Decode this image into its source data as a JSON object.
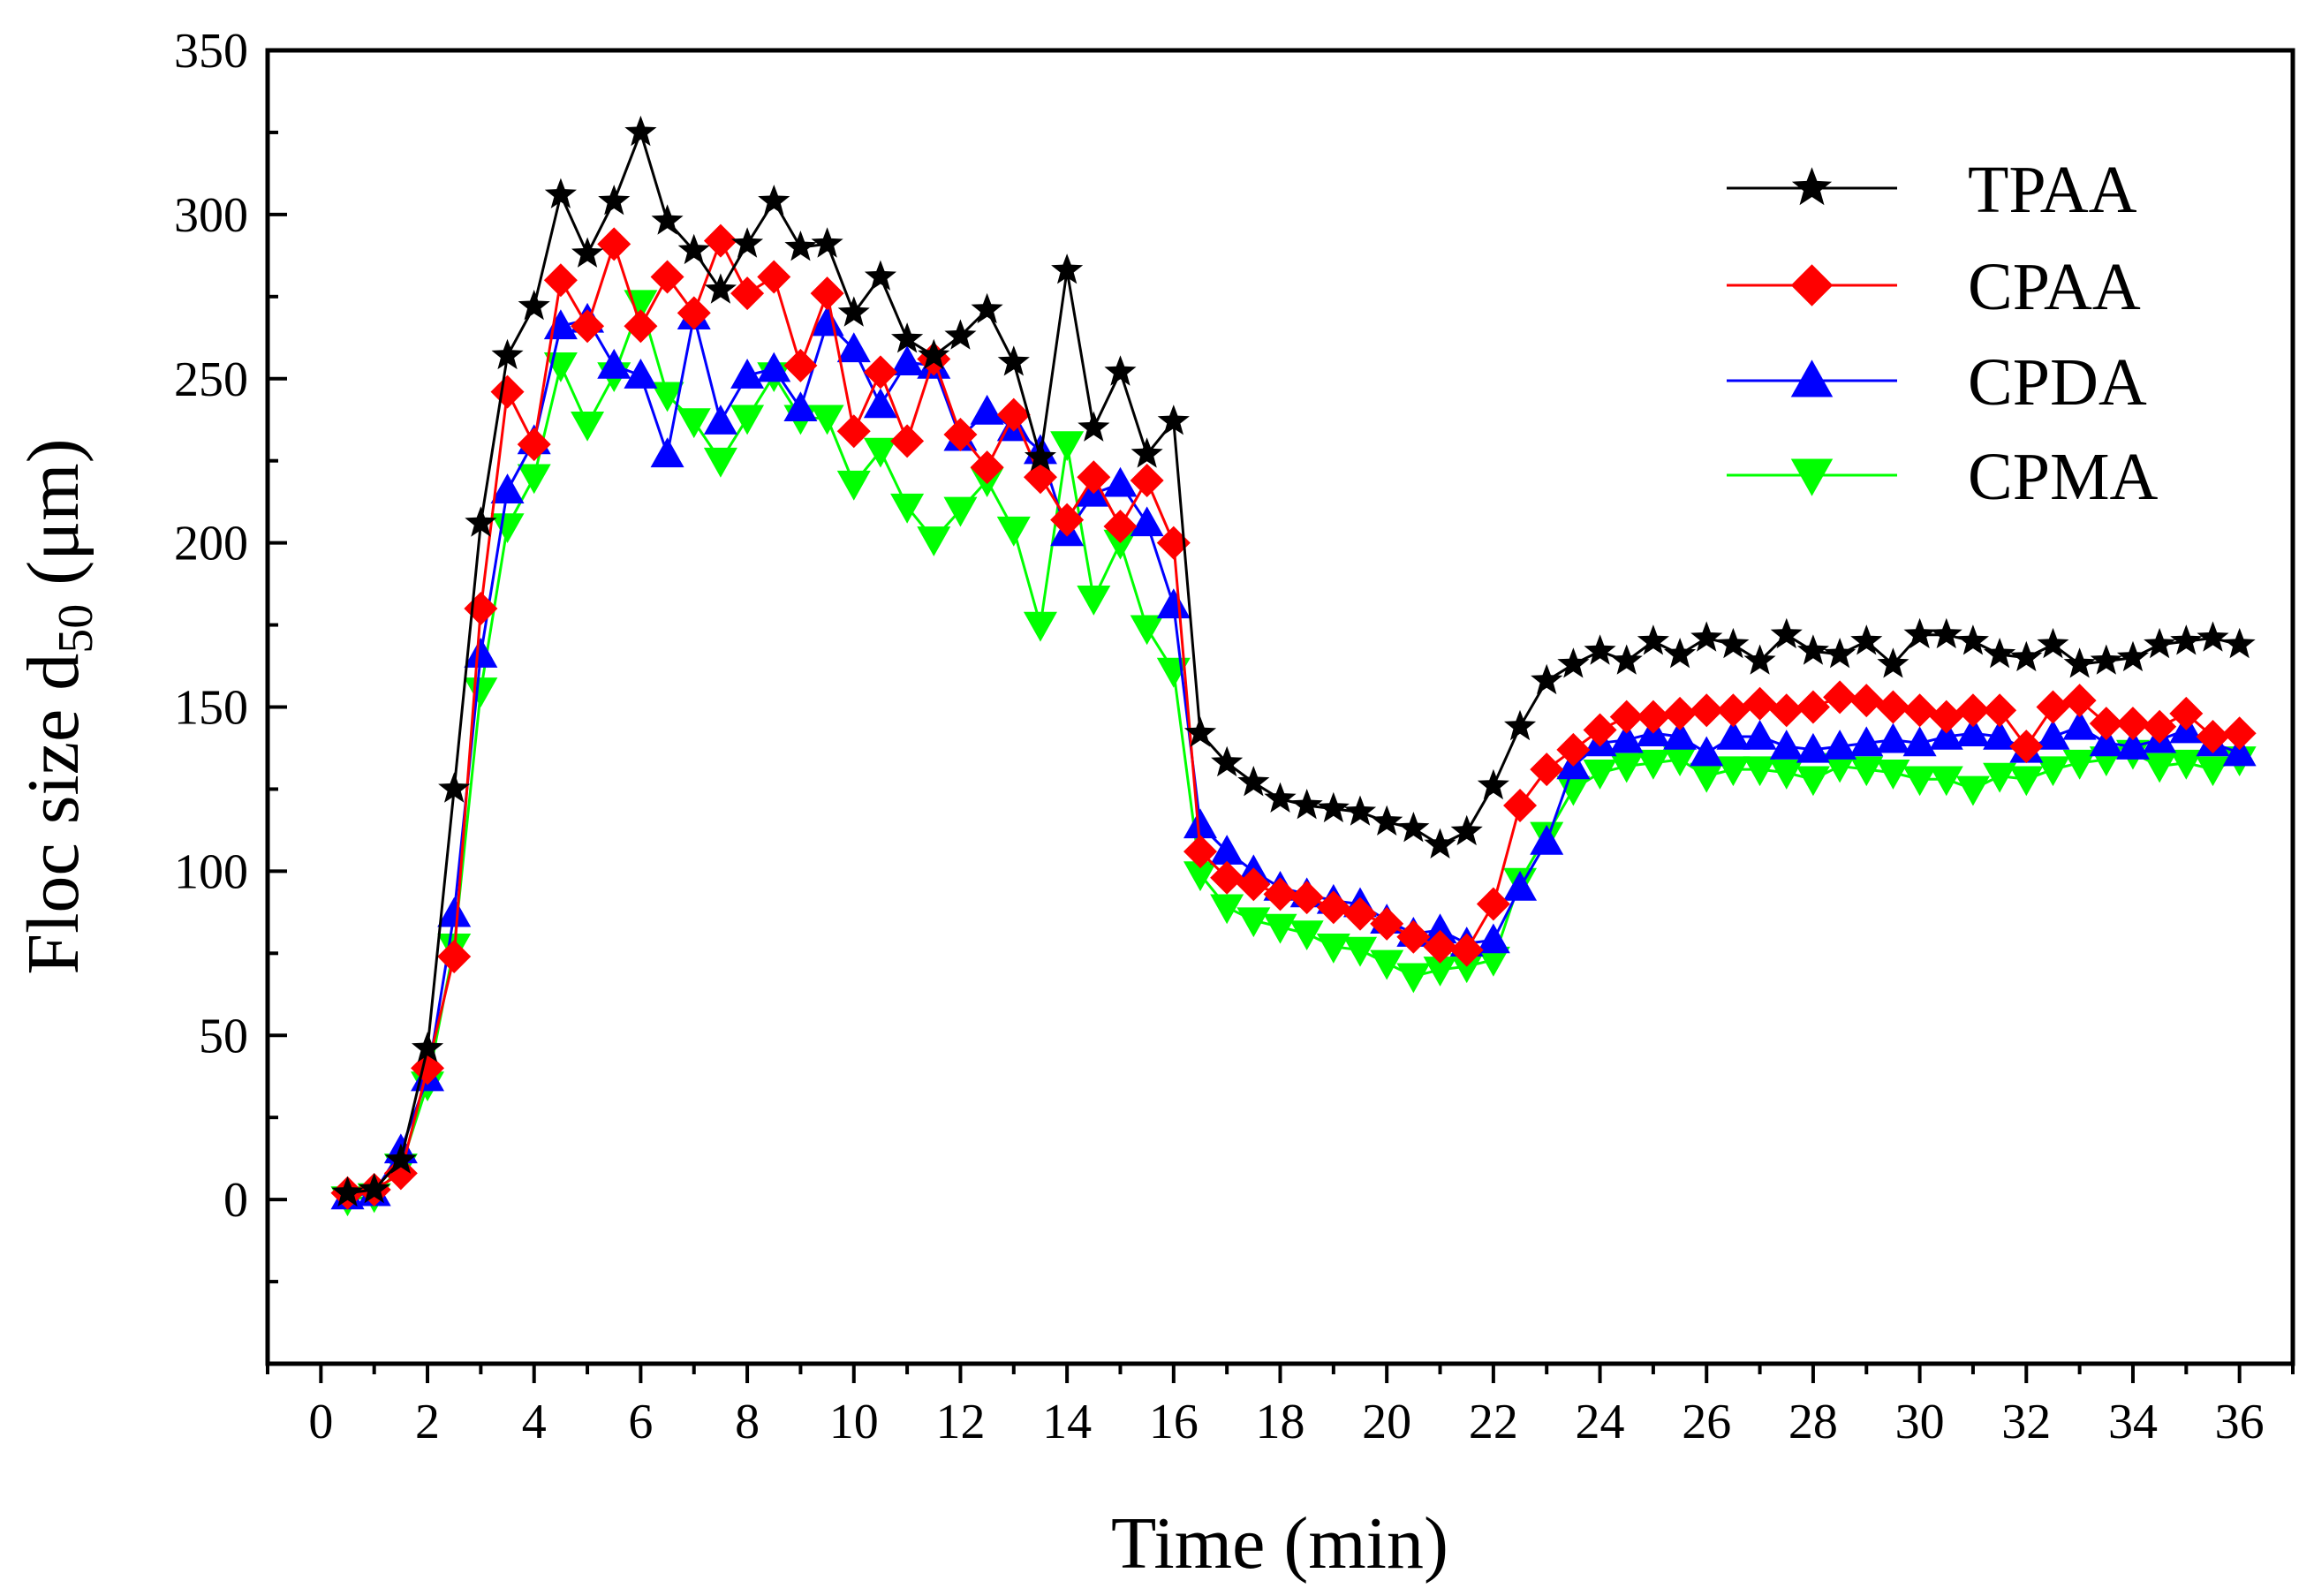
{
  "chart_data": {
    "type": "line",
    "title": "",
    "xlabel": "Time (min)",
    "ylabel_main": "Floc size d",
    "ylabel_sub": "50",
    "ylabel_unit": " (μm)",
    "xlim": [
      -1,
      37
    ],
    "ylim": [
      -50,
      350
    ],
    "xticks": [
      0,
      2,
      4,
      6,
      8,
      10,
      12,
      14,
      16,
      18,
      20,
      22,
      24,
      26,
      28,
      30,
      32,
      34,
      36
    ],
    "yticks": [
      0,
      50,
      100,
      150,
      200,
      250,
      300,
      350
    ],
    "grid": false,
    "legend_position": "top-right",
    "x": [
      0.5,
      1,
      1.5,
      2,
      2.5,
      3,
      3.5,
      4,
      4.5,
      5,
      5.5,
      6,
      6.5,
      7,
      7.5,
      8,
      8.5,
      9,
      9.5,
      10,
      10.5,
      11,
      11.5,
      12,
      12.5,
      13,
      13.5,
      14,
      14.5,
      15,
      15.5,
      16,
      16.5,
      17,
      17.5,
      18,
      18.5,
      19,
      19.5,
      20,
      20.5,
      21,
      21.5,
      22,
      22.5,
      23,
      23.5,
      24,
      24.5,
      25,
      25.5,
      26,
      26.5,
      27,
      27.5,
      28,
      28.5,
      29,
      29.5,
      30,
      30.5,
      31,
      31.5,
      32,
      32.5,
      33,
      33.5,
      34,
      34.5,
      35,
      35.5,
      36
    ],
    "series": [
      {
        "name": "TPAA",
        "color": "#000000",
        "marker": "star",
        "values": [
          2,
          3,
          12,
          46,
          125,
          206,
          257,
          272,
          306,
          288,
          304,
          325,
          298,
          289,
          277,
          291,
          304,
          290,
          291,
          270,
          281,
          262,
          257,
          263,
          271,
          255,
          226,
          283,
          235,
          252,
          227,
          237,
          142,
          133,
          127,
          122,
          120,
          119,
          118,
          115,
          113,
          108,
          112,
          126,
          144,
          158,
          163,
          167,
          164,
          170,
          166,
          171,
          169,
          164,
          172,
          167,
          166,
          170,
          163,
          172,
          172,
          170,
          166,
          165,
          169,
          163,
          164,
          165,
          169,
          170,
          171,
          169
        ]
      },
      {
        "name": "CPAA",
        "color": "#ff0000",
        "marker": "diamond",
        "values": [
          2,
          3,
          8,
          40,
          74,
          180,
          246,
          230,
          280,
          266,
          291,
          266,
          281,
          270,
          292,
          276,
          281,
          254,
          276,
          234,
          252,
          231,
          256,
          233,
          223,
          239,
          220,
          207,
          220,
          205,
          219,
          200,
          106,
          98,
          96,
          93,
          92,
          89,
          87,
          84,
          80,
          77,
          76,
          90,
          120,
          131,
          137,
          143,
          147,
          147,
          148,
          149,
          149,
          151,
          149,
          150,
          153,
          152,
          150,
          149,
          147,
          149,
          149,
          138,
          150,
          152,
          145,
          145,
          144,
          148,
          141,
          142
        ]
      },
      {
        "name": "CPDA",
        "color": "#0000ff",
        "marker": "triangle-up",
        "values": [
          1,
          2,
          15,
          37,
          87,
          166,
          216,
          231,
          266,
          268,
          254,
          251,
          227,
          269,
          237,
          251,
          253,
          241,
          267,
          259,
          242,
          255,
          254,
          232,
          240,
          235,
          228,
          203,
          215,
          218,
          206,
          181,
          114,
          106,
          100,
          95,
          93,
          91,
          90,
          85,
          81,
          82,
          78,
          79,
          95,
          109,
          132,
          139,
          140,
          142,
          141,
          136,
          141,
          141,
          138,
          137,
          138,
          139,
          140,
          139,
          141,
          142,
          141,
          137,
          141,
          144,
          139,
          138,
          140,
          143,
          139,
          136
        ]
      },
      {
        "name": "CPMA",
        "color": "#00ff00",
        "marker": "triangle-down",
        "values": [
          0,
          1,
          10,
          35,
          77,
          155,
          205,
          220,
          254,
          236,
          251,
          273,
          245,
          237,
          225,
          238,
          251,
          238,
          238,
          218,
          228,
          211,
          201,
          210,
          219,
          204,
          175,
          230,
          183,
          200,
          174,
          161,
          99,
          89,
          85,
          83,
          81,
          77,
          76,
          72,
          68,
          70,
          71,
          73,
          97,
          111,
          125,
          130,
          132,
          133,
          134,
          129,
          131,
          131,
          130,
          128,
          132,
          131,
          130,
          128,
          128,
          125,
          129,
          128,
          131,
          133,
          134,
          136,
          132,
          133,
          131,
          134
        ]
      }
    ]
  }
}
